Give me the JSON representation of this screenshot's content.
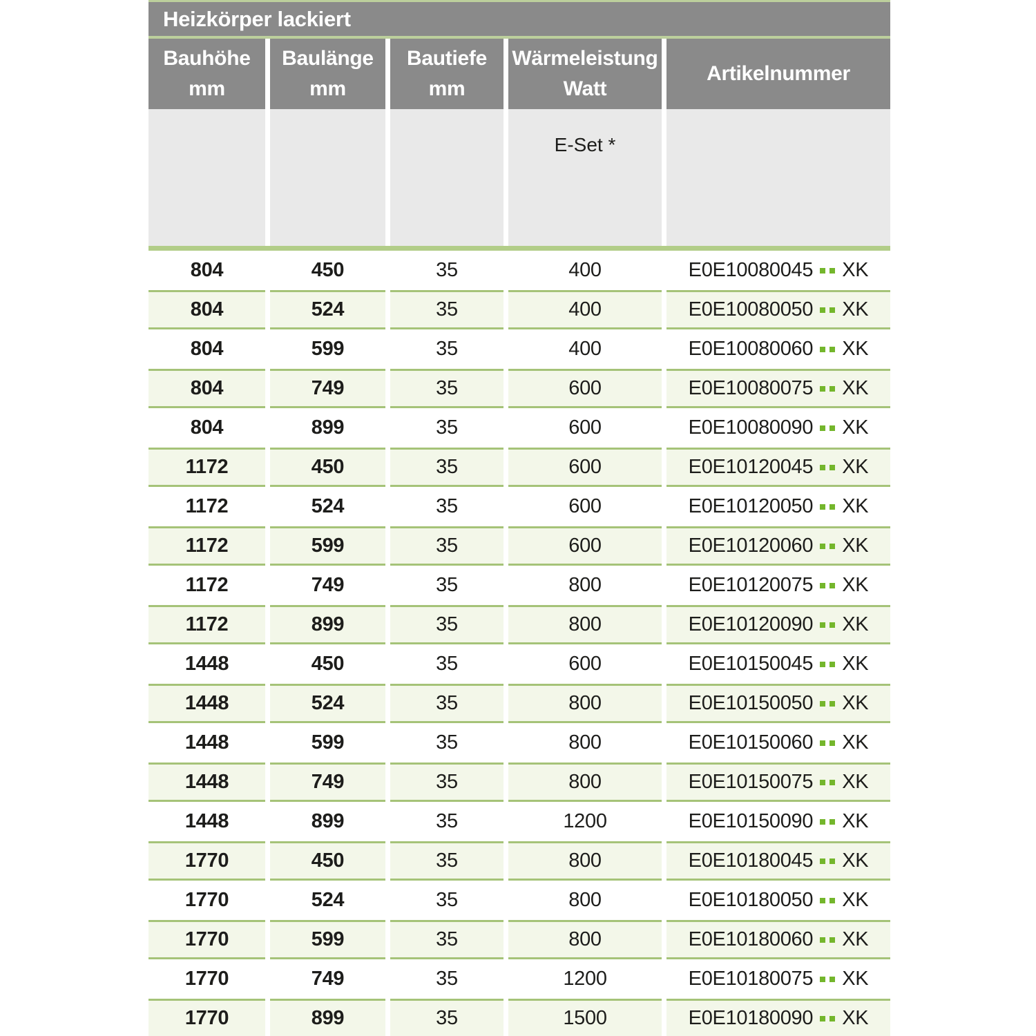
{
  "colors": {
    "band-gray": "#8a8a8a",
    "subheader-gray": "#e9e9e9",
    "line-green-pale": "#bccf9c",
    "bar-green": "#b2cd88",
    "row-green-bg": "#f3f7e9",
    "row-green-border": "#a5c378",
    "dot-green": "#74b62c",
    "text-dark": "#1d1d1b"
  },
  "table": {
    "title": "Heizkörper lackiert",
    "columns": [
      {
        "line1": "Bauhöhe",
        "line2": "mm"
      },
      {
        "line1": "Baulänge",
        "line2": "mm"
      },
      {
        "line1": "Bautiefe",
        "line2": "mm"
      },
      {
        "line1": "Wärmeleistung",
        "line2": "Watt"
      },
      {
        "line1": "Artikelnummer",
        "line2": ""
      }
    ],
    "subheader_note": "E-Set *",
    "article_separator": "..",
    "rows": [
      [
        "804",
        "450",
        "35",
        "400",
        "E0E10080045",
        "XK"
      ],
      [
        "804",
        "524",
        "35",
        "400",
        "E0E10080050",
        "XK"
      ],
      [
        "804",
        "599",
        "35",
        "400",
        "E0E10080060",
        "XK"
      ],
      [
        "804",
        "749",
        "35",
        "600",
        "E0E10080075",
        "XK"
      ],
      [
        "804",
        "899",
        "35",
        "600",
        "E0E10080090",
        "XK"
      ],
      [
        "1172",
        "450",
        "35",
        "600",
        "E0E10120045",
        "XK"
      ],
      [
        "1172",
        "524",
        "35",
        "600",
        "E0E10120050",
        "XK"
      ],
      [
        "1172",
        "599",
        "35",
        "600",
        "E0E10120060",
        "XK"
      ],
      [
        "1172",
        "749",
        "35",
        "800",
        "E0E10120075",
        "XK"
      ],
      [
        "1172",
        "899",
        "35",
        "800",
        "E0E10120090",
        "XK"
      ],
      [
        "1448",
        "450",
        "35",
        "600",
        "E0E10150045",
        "XK"
      ],
      [
        "1448",
        "524",
        "35",
        "800",
        "E0E10150050",
        "XK"
      ],
      [
        "1448",
        "599",
        "35",
        "800",
        "E0E10150060",
        "XK"
      ],
      [
        "1448",
        "749",
        "35",
        "800",
        "E0E10150075",
        "XK"
      ],
      [
        "1448",
        "899",
        "35",
        "1200",
        "E0E10150090",
        "XK"
      ],
      [
        "1770",
        "450",
        "35",
        "800",
        "E0E10180045",
        "XK"
      ],
      [
        "1770",
        "524",
        "35",
        "800",
        "E0E10180050",
        "XK"
      ],
      [
        "1770",
        "599",
        "35",
        "800",
        "E0E10180060",
        "XK"
      ],
      [
        "1770",
        "749",
        "35",
        "1200",
        "E0E10180075",
        "XK"
      ],
      [
        "1770",
        "899",
        "35",
        "1500",
        "E0E10180090",
        "XK"
      ]
    ]
  }
}
